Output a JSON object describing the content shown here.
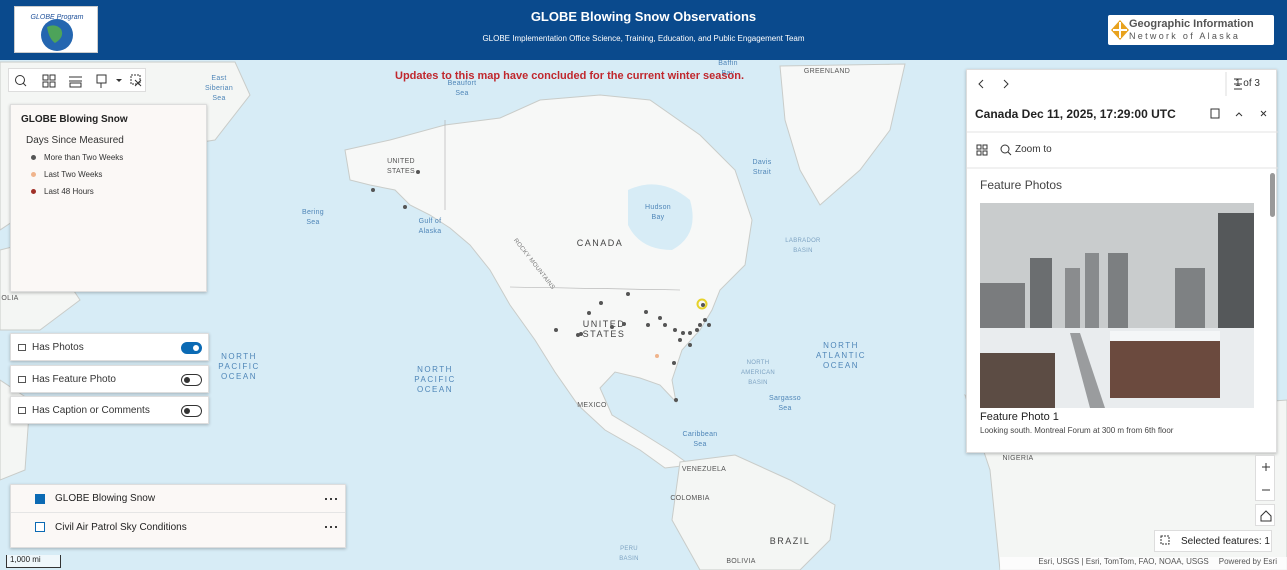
{
  "header": {
    "title": "GLOBE Blowing Snow Observations",
    "subtitle": "GLOBE Implementation Office Science, Training, Education, and Public Engagement Team",
    "logo_left": "GLOBE Program",
    "logo_right": [
      "Geographic Information",
      "Network of Alaska"
    ]
  },
  "notice": "Updates to this map have concluded for the current winter season.",
  "legend": {
    "title": "GLOBE Blowing Snow",
    "subtitle": "Days Since Measured",
    "items": [
      {
        "label": "More than Two Weeks",
        "color": "#555555"
      },
      {
        "label": "Last Two Weeks",
        "color": "#f0b48c"
      },
      {
        "label": "Last 48 Hours",
        "color": "#a03028"
      }
    ]
  },
  "filters": [
    {
      "label": "Has Photos",
      "on": true
    },
    {
      "label": "Has Feature Photo",
      "on": false
    },
    {
      "label": "Has Caption or Comments",
      "on": false
    }
  ],
  "layers": [
    {
      "label": "GLOBE Blowing Snow",
      "checked": true
    },
    {
      "label": "Civil Air Patrol Sky Conditions",
      "checked": false
    }
  ],
  "popup": {
    "pager": "1 of 3",
    "title": "Canada Dec 11, 2025, 17:29:00 UTC",
    "zoom": "Zoom to",
    "section": "Feature Photos",
    "photo_title": "Feature Photo 1",
    "caption": "Looking south. Montreal Forum at 300 m from 6th floor"
  },
  "selected": "Selected features: 1",
  "scale": "1,000 mi",
  "attribution": {
    "sources": "Esri, USGS | Esri, TomTom, FAO, NOAA, USGS",
    "powered": "Powered by Esri"
  },
  "map_labels": [
    [
      "East",
      "Siberian",
      "Sea"
    ],
    [
      "Beaufort",
      "Sea"
    ],
    [
      "Baffin",
      "Bay"
    ],
    [
      "GREENLAND"
    ],
    [
      "UNITED",
      "STATES"
    ],
    [
      "Bering",
      "Sea"
    ],
    [
      "Gulf of",
      "Alaska"
    ],
    [
      "Davis",
      "Strait"
    ],
    [
      "Hudson",
      "Bay"
    ],
    [
      "CANADA"
    ],
    [
      "LABRADOR",
      "BASIN"
    ],
    [
      "UNITED",
      "STATES"
    ],
    [
      "NORTH",
      "PACIFIC",
      "OCEAN"
    ],
    [
      "NORTH",
      "PACIFIC",
      "OCEAN"
    ],
    [
      "NORTH",
      "AMERICAN",
      "BASIN"
    ],
    [
      "NORTH",
      "ATLANTIC",
      "OCEAN"
    ],
    [
      "Sargasso",
      "Sea"
    ],
    [
      "MEXICO"
    ],
    [
      "Caribbean",
      "Sea"
    ],
    [
      "VENEZUELA"
    ],
    [
      "COLOMBIA"
    ],
    [
      "BRAZIL"
    ],
    [
      "PERU",
      "BASIN"
    ],
    [
      "NIGERIA"
    ],
    [
      "BOLIVIA"
    ],
    [
      "OLIA"
    ],
    [
      "ROCKY MOUNTAINS"
    ]
  ]
}
